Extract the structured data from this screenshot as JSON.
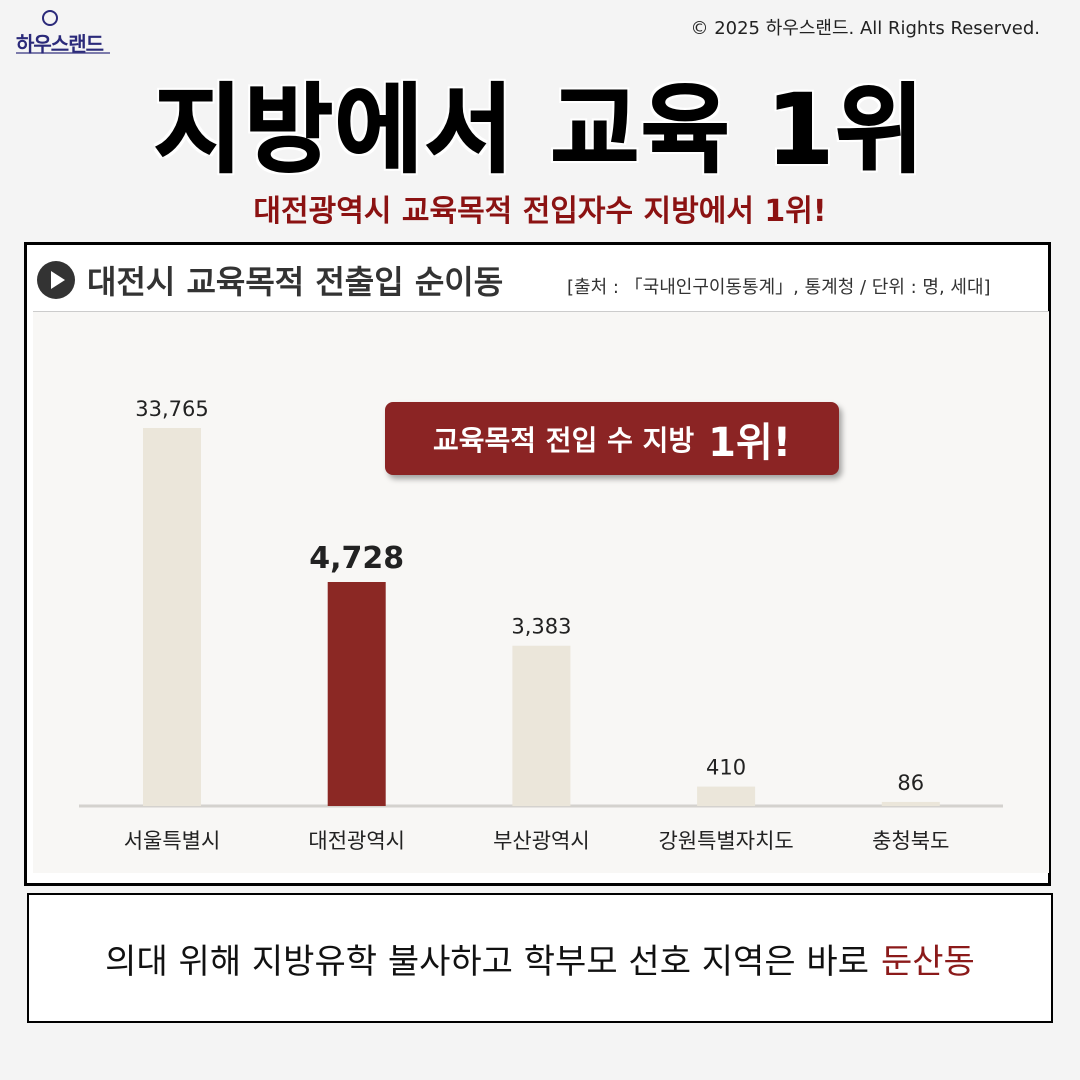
{
  "logo": {
    "text": "하우스랜드"
  },
  "copyright": "© 2025 하우스랜드. All Rights Reserved.",
  "title": "지방에서 교육 1위",
  "subtitle": "대전광역시 교육목적 전입자수 지방에서 1위!",
  "callout": {
    "text": "교육목적 전입 수 지방",
    "rank": "1위!"
  },
  "bottom": {
    "text": "의대 위해 지방유학 불사하고 학부모 선호 지역은 바로",
    "highlight": "둔산동",
    "highlight_color": "#8b1a1a"
  },
  "chart_data": {
    "type": "bar",
    "title": "대전시 교육목적 전출입 순이동",
    "source": "[출처 : 「국내인구이동통계」, 통계청 / 단위 : 명, 세대]",
    "categories": [
      "서울특별시",
      "대전광역시",
      "부산광역시",
      "강원특별자치도",
      "충청북도"
    ],
    "values": [
      33765,
      4728,
      3383,
      410,
      86
    ],
    "value_labels": [
      "33,765",
      "4,728",
      "3,383",
      "410",
      "86"
    ],
    "highlight_index": 1,
    "colors": {
      "default": "#ebe6da",
      "highlight": "#8b2824"
    },
    "grid": false
  }
}
